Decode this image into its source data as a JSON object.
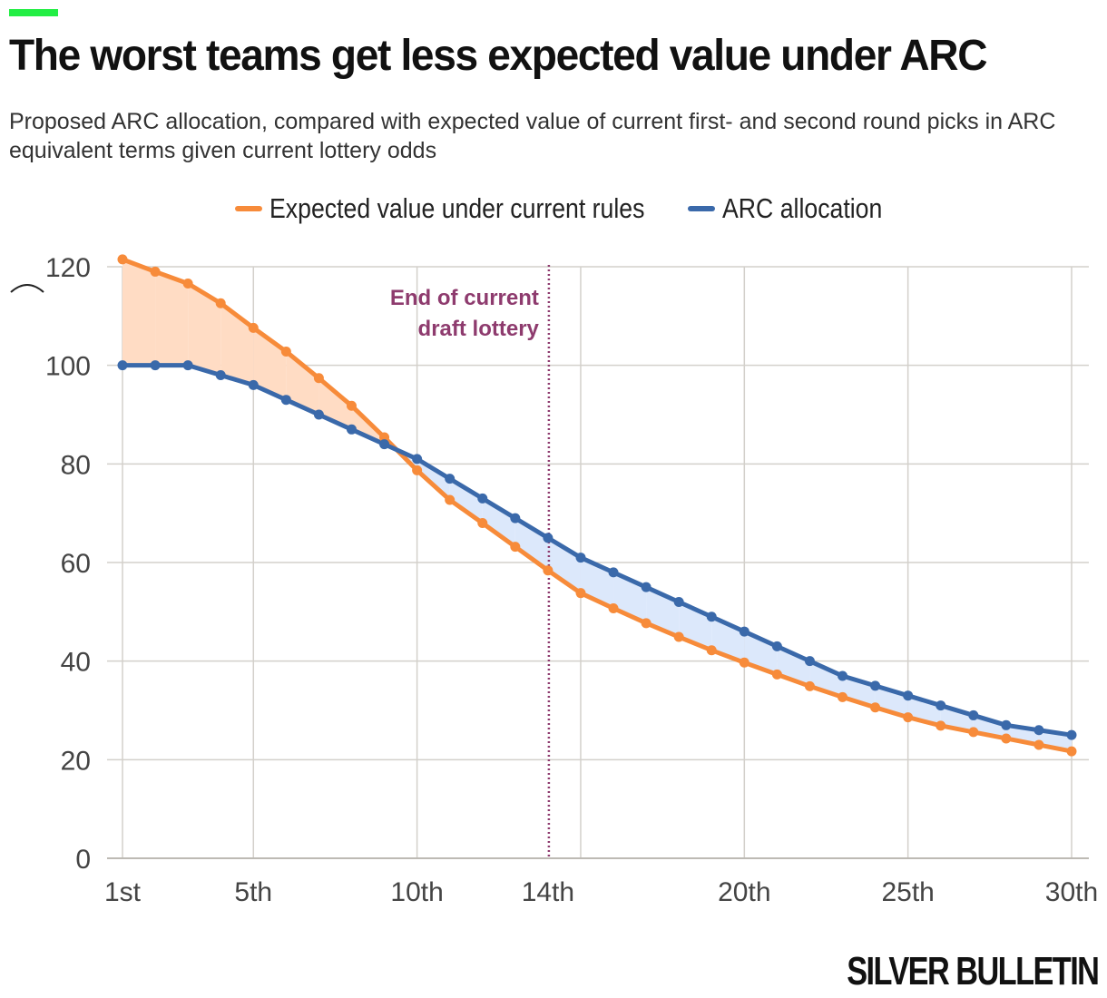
{
  "header": {
    "title": "The worst teams get less expected value under ARC",
    "subtitle": "Proposed ARC allocation, compared with expected value of current first- and second round picks in ARC equivalent terms given current lottery odds"
  },
  "colors": {
    "accent": "#22ee44",
    "expected": "#f78b3a",
    "arc": "#3a69aa",
    "expected_fill": "#ffdcc4",
    "arc_fill": "#dce8fb",
    "grid": "#d3d0cb",
    "annotation": "#8e3b6e"
  },
  "legend": {
    "expected_label": "Expected value under current rules",
    "arc_label": "ARC allocation"
  },
  "brand": "SILVER BULLETIN",
  "chart_data": {
    "type": "line",
    "title": "The worst teams get less expected value under ARC",
    "xlabel": "",
    "ylabel": "",
    "x": [
      1,
      2,
      3,
      4,
      5,
      6,
      7,
      8,
      9,
      10,
      11,
      12,
      13,
      14,
      15,
      16,
      17,
      18,
      19,
      20,
      21,
      22,
      23,
      24,
      25,
      26,
      27,
      28,
      29,
      30
    ],
    "xlim": [
      1,
      30
    ],
    "ylim": [
      0,
      120
    ],
    "x_ticks": [
      {
        "value": 1,
        "label": "1st"
      },
      {
        "value": 5,
        "label": "5th"
      },
      {
        "value": 10,
        "label": "10th"
      },
      {
        "value": 14,
        "label": "14th"
      },
      {
        "value": 20,
        "label": "20th"
      },
      {
        "value": 25,
        "label": "25th"
      },
      {
        "value": 30,
        "label": "30th"
      }
    ],
    "y_ticks": [
      {
        "value": 0,
        "label": "0"
      },
      {
        "value": 20,
        "label": "20"
      },
      {
        "value": 40,
        "label": "40"
      },
      {
        "value": 60,
        "label": "60"
      },
      {
        "value": 80,
        "label": "80"
      },
      {
        "value": 100,
        "label": "100"
      },
      {
        "value": 120,
        "label": "120"
      }
    ],
    "grid": true,
    "series": [
      {
        "name": "Expected value under current rules",
        "values": [
          121.5,
          119,
          116.6,
          112.6,
          107.6,
          102.8,
          97.4,
          91.8,
          85.4,
          78.7,
          72.7,
          68,
          63.2,
          58.4,
          53.8,
          50.7,
          47.7,
          44.9,
          42.2,
          39.7,
          37.3,
          34.9,
          32.7,
          30.6,
          28.6,
          26.9,
          25.6,
          24.3,
          23,
          21.7
        ]
      },
      {
        "name": "ARC allocation",
        "values": [
          100,
          100,
          100,
          98,
          96,
          93,
          90,
          87,
          84,
          81,
          77,
          73,
          69,
          65,
          61,
          58,
          55,
          52,
          49,
          46,
          43,
          40,
          37,
          35,
          33,
          31,
          29,
          27,
          26,
          25
        ]
      }
    ],
    "annotation": {
      "x": 14,
      "lines": [
        "End of current",
        "draft lottery"
      ]
    }
  }
}
